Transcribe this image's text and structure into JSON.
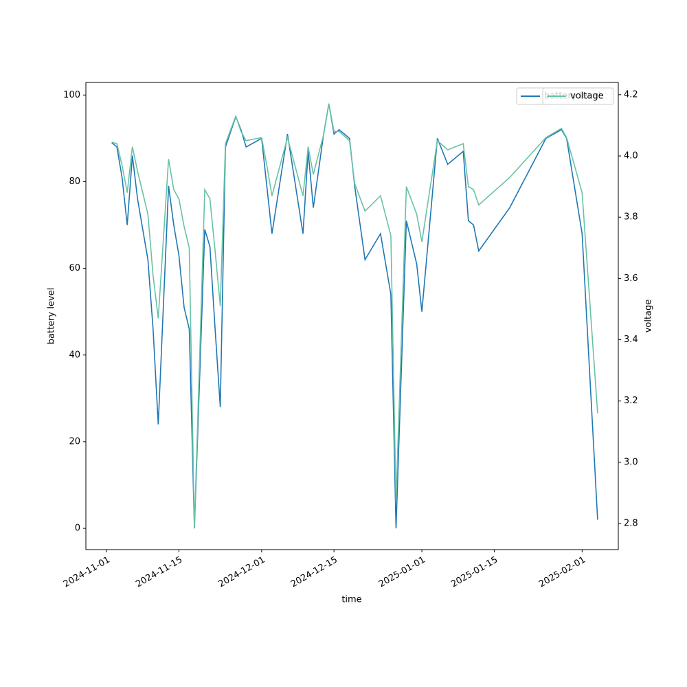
{
  "chart_data": {
    "type": "line",
    "x_label": "time",
    "y_label": "battery level",
    "y2_label": "voltage",
    "x": [
      "2024-11-02",
      "2024-11-03",
      "2024-11-04",
      "2024-11-05",
      "2024-11-06",
      "2024-11-07",
      "2024-11-08",
      "2024-11-09",
      "2024-11-10",
      "2024-11-11",
      "2024-11-13",
      "2024-11-14",
      "2024-11-15",
      "2024-11-16",
      "2024-11-17",
      "2024-11-18",
      "2024-11-20",
      "2024-11-21",
      "2024-11-22",
      "2024-11-23",
      "2024-11-24",
      "2024-11-26",
      "2024-11-27",
      "2024-11-28",
      "2024-12-01",
      "2024-12-02",
      "2024-12-03",
      "2024-12-06",
      "2024-12-09",
      "2024-12-10",
      "2024-12-11",
      "2024-12-13",
      "2024-12-14",
      "2024-12-15",
      "2024-12-16",
      "2024-12-18",
      "2024-12-19",
      "2024-12-21",
      "2024-12-24",
      "2024-12-26",
      "2024-12-27",
      "2024-12-29",
      "2024-12-31",
      "2025-01-01",
      "2025-01-04",
      "2025-01-06",
      "2025-01-09",
      "2025-01-10",
      "2025-01-11",
      "2025-01-12",
      "2025-01-18",
      "2025-01-25",
      "2025-01-28",
      "2025-01-29",
      "2025-02-01",
      "2025-02-04"
    ],
    "series": [
      {
        "name": "battery level",
        "color": "#1f77b4",
        "axis": "y",
        "values": [
          89,
          88,
          81,
          70,
          86,
          76,
          69,
          62,
          46,
          24,
          79,
          70,
          63,
          51,
          46,
          0,
          69,
          65,
          46,
          28,
          88,
          95,
          92,
          88,
          90,
          79,
          68,
          91,
          68,
          87,
          74,
          91,
          98,
          91,
          92,
          90,
          79,
          62,
          68,
          54,
          0,
          71,
          61,
          50,
          90,
          84,
          87,
          71,
          70,
          64,
          74,
          90,
          92,
          90,
          68,
          2
        ]
      },
      {
        "name": "voltage",
        "color": "#66c2a5",
        "axis": "y2",
        "values": [
          4.045,
          4.04,
          3.97,
          3.88,
          4.03,
          3.95,
          3.88,
          3.81,
          3.61,
          3.47,
          3.99,
          3.89,
          3.86,
          3.77,
          3.7,
          2.785,
          3.89,
          3.86,
          3.69,
          3.51,
          4.04,
          4.13,
          4.08,
          4.05,
          4.06,
          3.97,
          3.87,
          4.06,
          3.87,
          4.03,
          3.94,
          4.07,
          4.17,
          4.08,
          4.08,
          4.05,
          3.91,
          3.82,
          3.87,
          3.74,
          2.87,
          3.9,
          3.81,
          3.72,
          4.05,
          4.02,
          4.04,
          3.9,
          3.89,
          3.84,
          3.93,
          4.06,
          4.09,
          4.06,
          3.88,
          3.16
        ]
      }
    ],
    "xlim": [
      "2024-10-28",
      "2025-02-08"
    ],
    "xticks": [
      "2024-11-01",
      "2024-11-15",
      "2024-12-01",
      "2024-12-15",
      "2025-01-01",
      "2025-01-15",
      "2025-02-01"
    ],
    "ylim": [
      -4.9,
      102.9
    ],
    "yticks": [
      0,
      20,
      40,
      60,
      80,
      100
    ],
    "y2lim": [
      2.715,
      4.24
    ],
    "y2ticks": [
      2.8,
      {
        "value": 3,
        "label": "3.0"
      },
      3.2,
      3.4,
      3.6,
      3.8,
      {
        "value": 4,
        "label": "4.0"
      },
      4.2
    ],
    "grid": false,
    "legend": "upper right"
  }
}
